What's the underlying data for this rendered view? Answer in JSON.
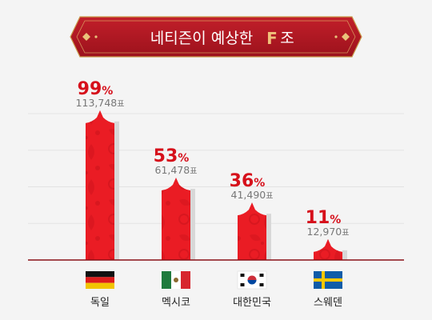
{
  "header": {
    "title": "네티즌이 예상한",
    "group_letter": "F",
    "group_suffix": "조"
  },
  "colors": {
    "banner": "#b51a24",
    "banner_dark": "#8c0f18",
    "gold": "#c89a4a",
    "bar": "#ea1c24",
    "bar_pattern": "#c9121a",
    "value_red": "#d6101b",
    "votes_gray": "#777777",
    "grid": "#e3e3e3",
    "axis": "#8a1016"
  },
  "chart_data": {
    "type": "bar",
    "title": "네티즌이 예상한 F조",
    "categories": [
      "독일",
      "멕시코",
      "대한민국",
      "스웨덴"
    ],
    "flags": [
      "germany-flag",
      "mexico-flag",
      "south-korea-flag",
      "sweden-flag"
    ],
    "values": [
      99,
      53,
      36,
      11
    ],
    "value_suffix": "%",
    "votes": [
      "113,748",
      "61,478",
      "41,490",
      "12,970"
    ],
    "votes_suffix": "표",
    "ylim": [
      0,
      100
    ],
    "grid": true
  }
}
